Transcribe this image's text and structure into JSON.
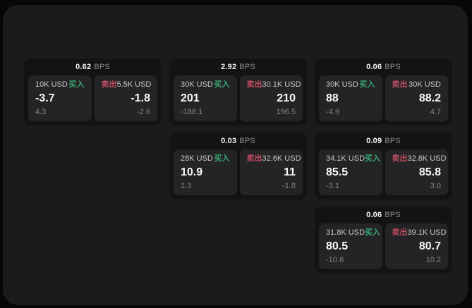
{
  "labels": {
    "bps": "BPS",
    "buy": "买入",
    "sell": "卖出"
  },
  "colors": {
    "background": "#070708",
    "panel": "#1b1b1d",
    "card": "#131314",
    "subpanel": "#242427",
    "buy_green": "#3aa973",
    "sell_red": "#c04b60",
    "value_white": "#f7f7f7",
    "muted_gray": "#858585"
  },
  "cards": [
    {
      "bps": "0.62",
      "buy": {
        "amount": "10K USD",
        "value": "-3.7",
        "delta": "4.3"
      },
      "sell": {
        "amount": "5.5K USD",
        "value": "-1.8",
        "delta": "-2.6"
      }
    },
    {
      "bps": "2.92",
      "buy": {
        "amount": "30K USD",
        "value": "201",
        "delta": "-188.1"
      },
      "sell": {
        "amount": "30.1K USD",
        "value": "210",
        "delta": "196.5"
      }
    },
    {
      "bps": "0.06",
      "buy": {
        "amount": "30K USD",
        "value": "88",
        "delta": "-4.9"
      },
      "sell": {
        "amount": "30K USD",
        "value": "88.2",
        "delta": "4.7"
      }
    },
    {
      "bps": "0.03",
      "buy": {
        "amount": "28K USD",
        "value": "10.9",
        "delta": "1.3"
      },
      "sell": {
        "amount": "32.6K USD",
        "value": "11",
        "delta": "-1.8"
      }
    },
    {
      "bps": "0.09",
      "buy": {
        "amount": "34.1K USD",
        "value": "85.5",
        "delta": "-3.1"
      },
      "sell": {
        "amount": "32.8K USD",
        "value": "85.8",
        "delta": "3.0"
      }
    },
    {
      "bps": "0.06",
      "buy": {
        "amount": "31.8K USD",
        "value": "80.5",
        "delta": "-10.8"
      },
      "sell": {
        "amount": "39.1K USD",
        "value": "80.7",
        "delta": "10.2"
      }
    }
  ]
}
